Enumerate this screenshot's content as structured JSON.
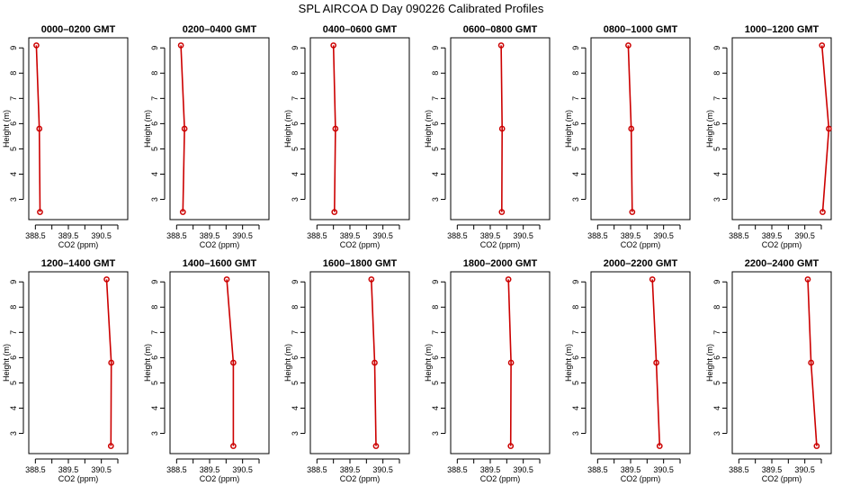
{
  "title": "SPL AIRCOA D  Day 090226  Calibrated Profiles",
  "chart_data": [
    {
      "type": "line",
      "title": "0000–0200 GMT",
      "xlabel": "CO2 (ppm)",
      "ylabel": "Height (m)",
      "xlim": [
        388.3,
        391.3
      ],
      "ylim": [
        2.2,
        9.4
      ],
      "xticks": [
        388.5,
        389.5,
        390.5
      ],
      "xminorticks": [
        389.0,
        390.0,
        391.0
      ],
      "yticks": [
        3,
        4,
        5,
        6,
        7,
        8,
        9
      ],
      "grid": false,
      "color": "#cc0000",
      "points": [
        {
          "x": 388.53,
          "y": 9.1
        },
        {
          "x": 388.62,
          "y": 5.8
        },
        {
          "x": 388.64,
          "y": 2.5
        }
      ]
    },
    {
      "type": "line",
      "title": "0200–0400 GMT",
      "xlabel": "CO2 (ppm)",
      "ylabel": "Height (m)",
      "xlim": [
        388.3,
        391.3
      ],
      "ylim": [
        2.2,
        9.4
      ],
      "xticks": [
        388.5,
        389.5,
        390.5
      ],
      "xminorticks": [
        389.0,
        390.0,
        391.0
      ],
      "yticks": [
        3,
        4,
        5,
        6,
        7,
        8,
        9
      ],
      "grid": false,
      "color": "#cc0000",
      "points": [
        {
          "x": 388.63,
          "y": 9.1
        },
        {
          "x": 388.74,
          "y": 5.8
        },
        {
          "x": 388.69,
          "y": 2.5
        }
      ]
    },
    {
      "type": "line",
      "title": "0400–0600 GMT",
      "xlabel": "CO2 (ppm)",
      "ylabel": "Height (m)",
      "xlim": [
        388.3,
        391.3
      ],
      "ylim": [
        2.2,
        9.4
      ],
      "xticks": [
        388.5,
        389.5,
        390.5
      ],
      "xminorticks": [
        389.0,
        390.0,
        391.0
      ],
      "yticks": [
        3,
        4,
        5,
        6,
        7,
        8,
        9
      ],
      "grid": false,
      "color": "#cc0000",
      "points": [
        {
          "x": 389.0,
          "y": 9.1
        },
        {
          "x": 389.06,
          "y": 5.8
        },
        {
          "x": 389.03,
          "y": 2.5
        }
      ]
    },
    {
      "type": "line",
      "title": "0600–0800 GMT",
      "xlabel": "CO2 (ppm)",
      "ylabel": "Height (m)",
      "xlim": [
        388.3,
        391.3
      ],
      "ylim": [
        2.2,
        9.4
      ],
      "xticks": [
        388.5,
        389.5,
        390.5
      ],
      "xminorticks": [
        389.0,
        390.0,
        391.0
      ],
      "yticks": [
        3,
        4,
        5,
        6,
        7,
        8,
        9
      ],
      "grid": false,
      "color": "#cc0000",
      "points": [
        {
          "x": 389.83,
          "y": 9.1
        },
        {
          "x": 389.86,
          "y": 5.8
        },
        {
          "x": 389.85,
          "y": 2.5
        }
      ]
    },
    {
      "type": "line",
      "title": "0800–1000 GMT",
      "xlabel": "CO2 (ppm)",
      "ylabel": "Height (m)",
      "xlim": [
        388.3,
        391.3
      ],
      "ylim": [
        2.2,
        9.4
      ],
      "xticks": [
        388.5,
        389.5,
        390.5
      ],
      "xminorticks": [
        389.0,
        390.0,
        391.0
      ],
      "yticks": [
        3,
        4,
        5,
        6,
        7,
        8,
        9
      ],
      "grid": false,
      "color": "#cc0000",
      "points": [
        {
          "x": 389.43,
          "y": 9.1
        },
        {
          "x": 389.52,
          "y": 5.8
        },
        {
          "x": 389.55,
          "y": 2.5
        }
      ]
    },
    {
      "type": "line",
      "title": "1000–1200 GMT",
      "xlabel": "CO2 (ppm)",
      "ylabel": "Height (m)",
      "xlim": [
        388.3,
        391.3
      ],
      "ylim": [
        2.2,
        9.4
      ],
      "xticks": [
        388.5,
        389.5,
        390.5
      ],
      "xminorticks": [
        389.0,
        390.0,
        391.0
      ],
      "yticks": [
        3,
        4,
        5,
        6,
        7,
        8,
        9
      ],
      "grid": false,
      "color": "#cc0000",
      "points": [
        {
          "x": 391.02,
          "y": 9.1
        },
        {
          "x": 391.23,
          "y": 5.8
        },
        {
          "x": 391.04,
          "y": 2.5
        }
      ]
    },
    {
      "type": "line",
      "title": "1200–1400 GMT",
      "xlabel": "CO2 (ppm)",
      "ylabel": "Height (m)",
      "xlim": [
        388.3,
        391.3
      ],
      "ylim": [
        2.2,
        9.4
      ],
      "xticks": [
        388.5,
        389.5,
        390.5
      ],
      "xminorticks": [
        389.0,
        390.0,
        391.0
      ],
      "yticks": [
        3,
        4,
        5,
        6,
        7,
        8,
        9
      ],
      "grid": false,
      "color": "#cc0000",
      "points": [
        {
          "x": 390.66,
          "y": 9.1
        },
        {
          "x": 390.8,
          "y": 5.8
        },
        {
          "x": 390.79,
          "y": 2.5
        }
      ]
    },
    {
      "type": "line",
      "title": "1400–1600 GMT",
      "xlabel": "CO2 (ppm)",
      "ylabel": "Height (m)",
      "xlim": [
        388.3,
        391.3
      ],
      "ylim": [
        2.2,
        9.4
      ],
      "xticks": [
        388.5,
        389.5,
        390.5
      ],
      "xminorticks": [
        389.0,
        390.0,
        391.0
      ],
      "yticks": [
        3,
        4,
        5,
        6,
        7,
        8,
        9
      ],
      "grid": false,
      "color": "#cc0000",
      "points": [
        {
          "x": 390.02,
          "y": 9.1
        },
        {
          "x": 390.22,
          "y": 5.8
        },
        {
          "x": 390.22,
          "y": 2.5
        }
      ]
    },
    {
      "type": "line",
      "title": "1600–1800 GMT",
      "xlabel": "CO2 (ppm)",
      "ylabel": "Height (m)",
      "xlim": [
        388.3,
        391.3
      ],
      "ylim": [
        2.2,
        9.4
      ],
      "xticks": [
        388.5,
        389.5,
        390.5
      ],
      "xminorticks": [
        389.0,
        390.0,
        391.0
      ],
      "yticks": [
        3,
        4,
        5,
        6,
        7,
        8,
        9
      ],
      "grid": false,
      "color": "#cc0000",
      "points": [
        {
          "x": 390.15,
          "y": 9.1
        },
        {
          "x": 390.25,
          "y": 5.8
        },
        {
          "x": 390.29,
          "y": 2.5
        }
      ]
    },
    {
      "type": "line",
      "title": "1800–2000 GMT",
      "xlabel": "CO2 (ppm)",
      "ylabel": "Height (m)",
      "xlim": [
        388.3,
        391.3
      ],
      "ylim": [
        2.2,
        9.4
      ],
      "xticks": [
        388.5,
        389.5,
        390.5
      ],
      "xminorticks": [
        389.0,
        390.0,
        391.0
      ],
      "yticks": [
        3,
        4,
        5,
        6,
        7,
        8,
        9
      ],
      "grid": false,
      "color": "#cc0000",
      "points": [
        {
          "x": 390.05,
          "y": 9.1
        },
        {
          "x": 390.13,
          "y": 5.8
        },
        {
          "x": 390.12,
          "y": 2.5
        }
      ]
    },
    {
      "type": "line",
      "title": "2000–2200 GMT",
      "xlabel": "CO2 (ppm)",
      "ylabel": "Height (m)",
      "xlim": [
        388.3,
        391.3
      ],
      "ylim": [
        2.2,
        9.4
      ],
      "xticks": [
        388.5,
        389.5,
        390.5
      ],
      "xminorticks": [
        389.0,
        390.0,
        391.0
      ],
      "yticks": [
        3,
        4,
        5,
        6,
        7,
        8,
        9
      ],
      "grid": false,
      "color": "#cc0000",
      "points": [
        {
          "x": 390.16,
          "y": 9.1
        },
        {
          "x": 390.28,
          "y": 5.8
        },
        {
          "x": 390.38,
          "y": 2.5
        }
      ]
    },
    {
      "type": "line",
      "title": "2200–2400 GMT",
      "xlabel": "CO2 (ppm)",
      "ylabel": "Height (m)",
      "xlim": [
        388.3,
        391.3
      ],
      "ylim": [
        2.2,
        9.4
      ],
      "xticks": [
        388.5,
        389.5,
        390.5
      ],
      "xminorticks": [
        389.0,
        390.0,
        391.0
      ],
      "yticks": [
        3,
        4,
        5,
        6,
        7,
        8,
        9
      ],
      "grid": false,
      "color": "#cc0000",
      "points": [
        {
          "x": 390.59,
          "y": 9.1
        },
        {
          "x": 390.69,
          "y": 5.8
        },
        {
          "x": 390.86,
          "y": 2.5
        }
      ]
    }
  ]
}
